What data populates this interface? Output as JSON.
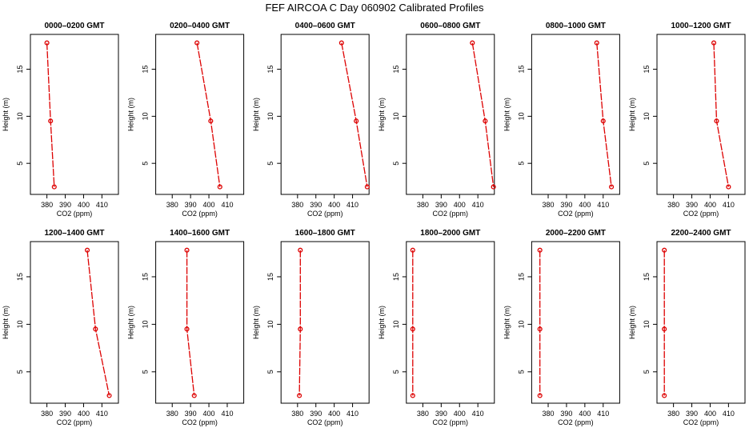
{
  "figure": {
    "title": "FEF AIRCOA C  Day 060902  Calibrated Profiles"
  },
  "style": {
    "series_color": "#dd0000",
    "axis_color": "#000000"
  },
  "chart_data": [
    {
      "type": "line",
      "title": "0000–0200 GMT",
      "xlabel": "CO2 (ppm)",
      "ylabel": "Height (m)",
      "xlim": [
        371,
        419
      ],
      "ylim": [
        1.7,
        18.7
      ],
      "xticks": [
        380,
        390,
        400,
        410
      ],
      "yticks": [
        5,
        10,
        15
      ],
      "x": [
        380,
        382,
        384
      ],
      "y": [
        17.8,
        9.5,
        2.5
      ]
    },
    {
      "type": "line",
      "title": "0200–0400 GMT",
      "xlabel": "CO2 (ppm)",
      "ylabel": "Height (m)",
      "xlim": [
        371,
        419
      ],
      "ylim": [
        1.7,
        18.7
      ],
      "xticks": [
        380,
        390,
        400,
        410
      ],
      "yticks": [
        5,
        10,
        15
      ],
      "x": [
        393.5,
        401,
        406
      ],
      "y": [
        17.8,
        9.5,
        2.5
      ]
    },
    {
      "type": "line",
      "title": "0400–0600 GMT",
      "xlabel": "CO2 (ppm)",
      "ylabel": "Height (m)",
      "xlim": [
        371,
        419
      ],
      "ylim": [
        1.7,
        18.7
      ],
      "xticks": [
        380,
        390,
        400,
        410
      ],
      "yticks": [
        5,
        10,
        15
      ],
      "x": [
        404,
        412,
        418
      ],
      "y": [
        17.8,
        9.5,
        2.5
      ]
    },
    {
      "type": "line",
      "title": "0600–0800 GMT",
      "xlabel": "CO2 (ppm)",
      "ylabel": "Height (m)",
      "xlim": [
        371,
        419
      ],
      "ylim": [
        1.7,
        18.7
      ],
      "xticks": [
        380,
        390,
        400,
        410
      ],
      "yticks": [
        5,
        10,
        15
      ],
      "x": [
        407,
        414,
        418.5
      ],
      "y": [
        17.8,
        9.5,
        2.5
      ]
    },
    {
      "type": "line",
      "title": "0800–1000 GMT",
      "xlabel": "CO2 (ppm)",
      "ylabel": "Height (m)",
      "xlim": [
        371,
        419
      ],
      "ylim": [
        1.7,
        18.7
      ],
      "xticks": [
        380,
        390,
        400,
        410
      ],
      "yticks": [
        5,
        10,
        15
      ],
      "x": [
        406.5,
        410,
        414.5
      ],
      "y": [
        17.8,
        9.5,
        2.5
      ]
    },
    {
      "type": "line",
      "title": "1000–1200 GMT",
      "xlabel": "CO2 (ppm)",
      "ylabel": "Height (m)",
      "xlim": [
        371,
        419
      ],
      "ylim": [
        1.7,
        18.7
      ],
      "xticks": [
        380,
        390,
        400,
        410
      ],
      "yticks": [
        5,
        10,
        15
      ],
      "x": [
        402,
        403.5,
        410
      ],
      "y": [
        17.8,
        9.5,
        2.5
      ]
    },
    {
      "type": "line",
      "title": "1200–1400 GMT",
      "xlabel": "CO2 (ppm)",
      "ylabel": "Height (m)",
      "xlim": [
        371,
        419
      ],
      "ylim": [
        1.7,
        18.7
      ],
      "xticks": [
        380,
        390,
        400,
        410
      ],
      "yticks": [
        5,
        10,
        15
      ],
      "x": [
        402,
        406.5,
        414
      ],
      "y": [
        17.8,
        9.5,
        2.5
      ]
    },
    {
      "type": "line",
      "title": "1400–1600 GMT",
      "xlabel": "CO2 (ppm)",
      "ylabel": "Height (m)",
      "xlim": [
        371,
        419
      ],
      "ylim": [
        1.7,
        18.7
      ],
      "xticks": [
        380,
        390,
        400,
        410
      ],
      "yticks": [
        5,
        10,
        15
      ],
      "x": [
        388,
        388,
        392
      ],
      "y": [
        17.8,
        9.5,
        2.5
      ]
    },
    {
      "type": "line",
      "title": "1600–1800 GMT",
      "xlabel": "CO2 (ppm)",
      "ylabel": "Height (m)",
      "xlim": [
        371,
        419
      ],
      "ylim": [
        1.7,
        18.7
      ],
      "xticks": [
        380,
        390,
        400,
        410
      ],
      "yticks": [
        5,
        10,
        15
      ],
      "x": [
        381.5,
        381.5,
        381
      ],
      "y": [
        17.8,
        9.5,
        2.5
      ]
    },
    {
      "type": "line",
      "title": "1800–2000 GMT",
      "xlabel": "CO2 (ppm)",
      "ylabel": "Height (m)",
      "xlim": [
        371,
        419
      ],
      "ylim": [
        1.7,
        18.7
      ],
      "xticks": [
        380,
        390,
        400,
        410
      ],
      "yticks": [
        5,
        10,
        15
      ],
      "x": [
        374.5,
        374.5,
        374.5
      ],
      "y": [
        17.8,
        9.5,
        2.5
      ]
    },
    {
      "type": "line",
      "title": "2000–2200 GMT",
      "xlabel": "CO2 (ppm)",
      "ylabel": "Height (m)",
      "xlim": [
        371,
        419
      ],
      "ylim": [
        1.7,
        18.7
      ],
      "xticks": [
        380,
        390,
        400,
        410
      ],
      "yticks": [
        5,
        10,
        15
      ],
      "x": [
        375.5,
        375.5,
        375.5
      ],
      "y": [
        17.8,
        9.5,
        2.5
      ]
    },
    {
      "type": "line",
      "title": "2200–2400 GMT",
      "xlabel": "CO2 (ppm)",
      "ylabel": "Height (m)",
      "xlim": [
        371,
        419
      ],
      "ylim": [
        1.7,
        18.7
      ],
      "xticks": [
        380,
        390,
        400,
        410
      ],
      "yticks": [
        5,
        10,
        15
      ],
      "x": [
        375,
        375,
        375
      ],
      "y": [
        17.8,
        9.5,
        2.5
      ]
    }
  ]
}
